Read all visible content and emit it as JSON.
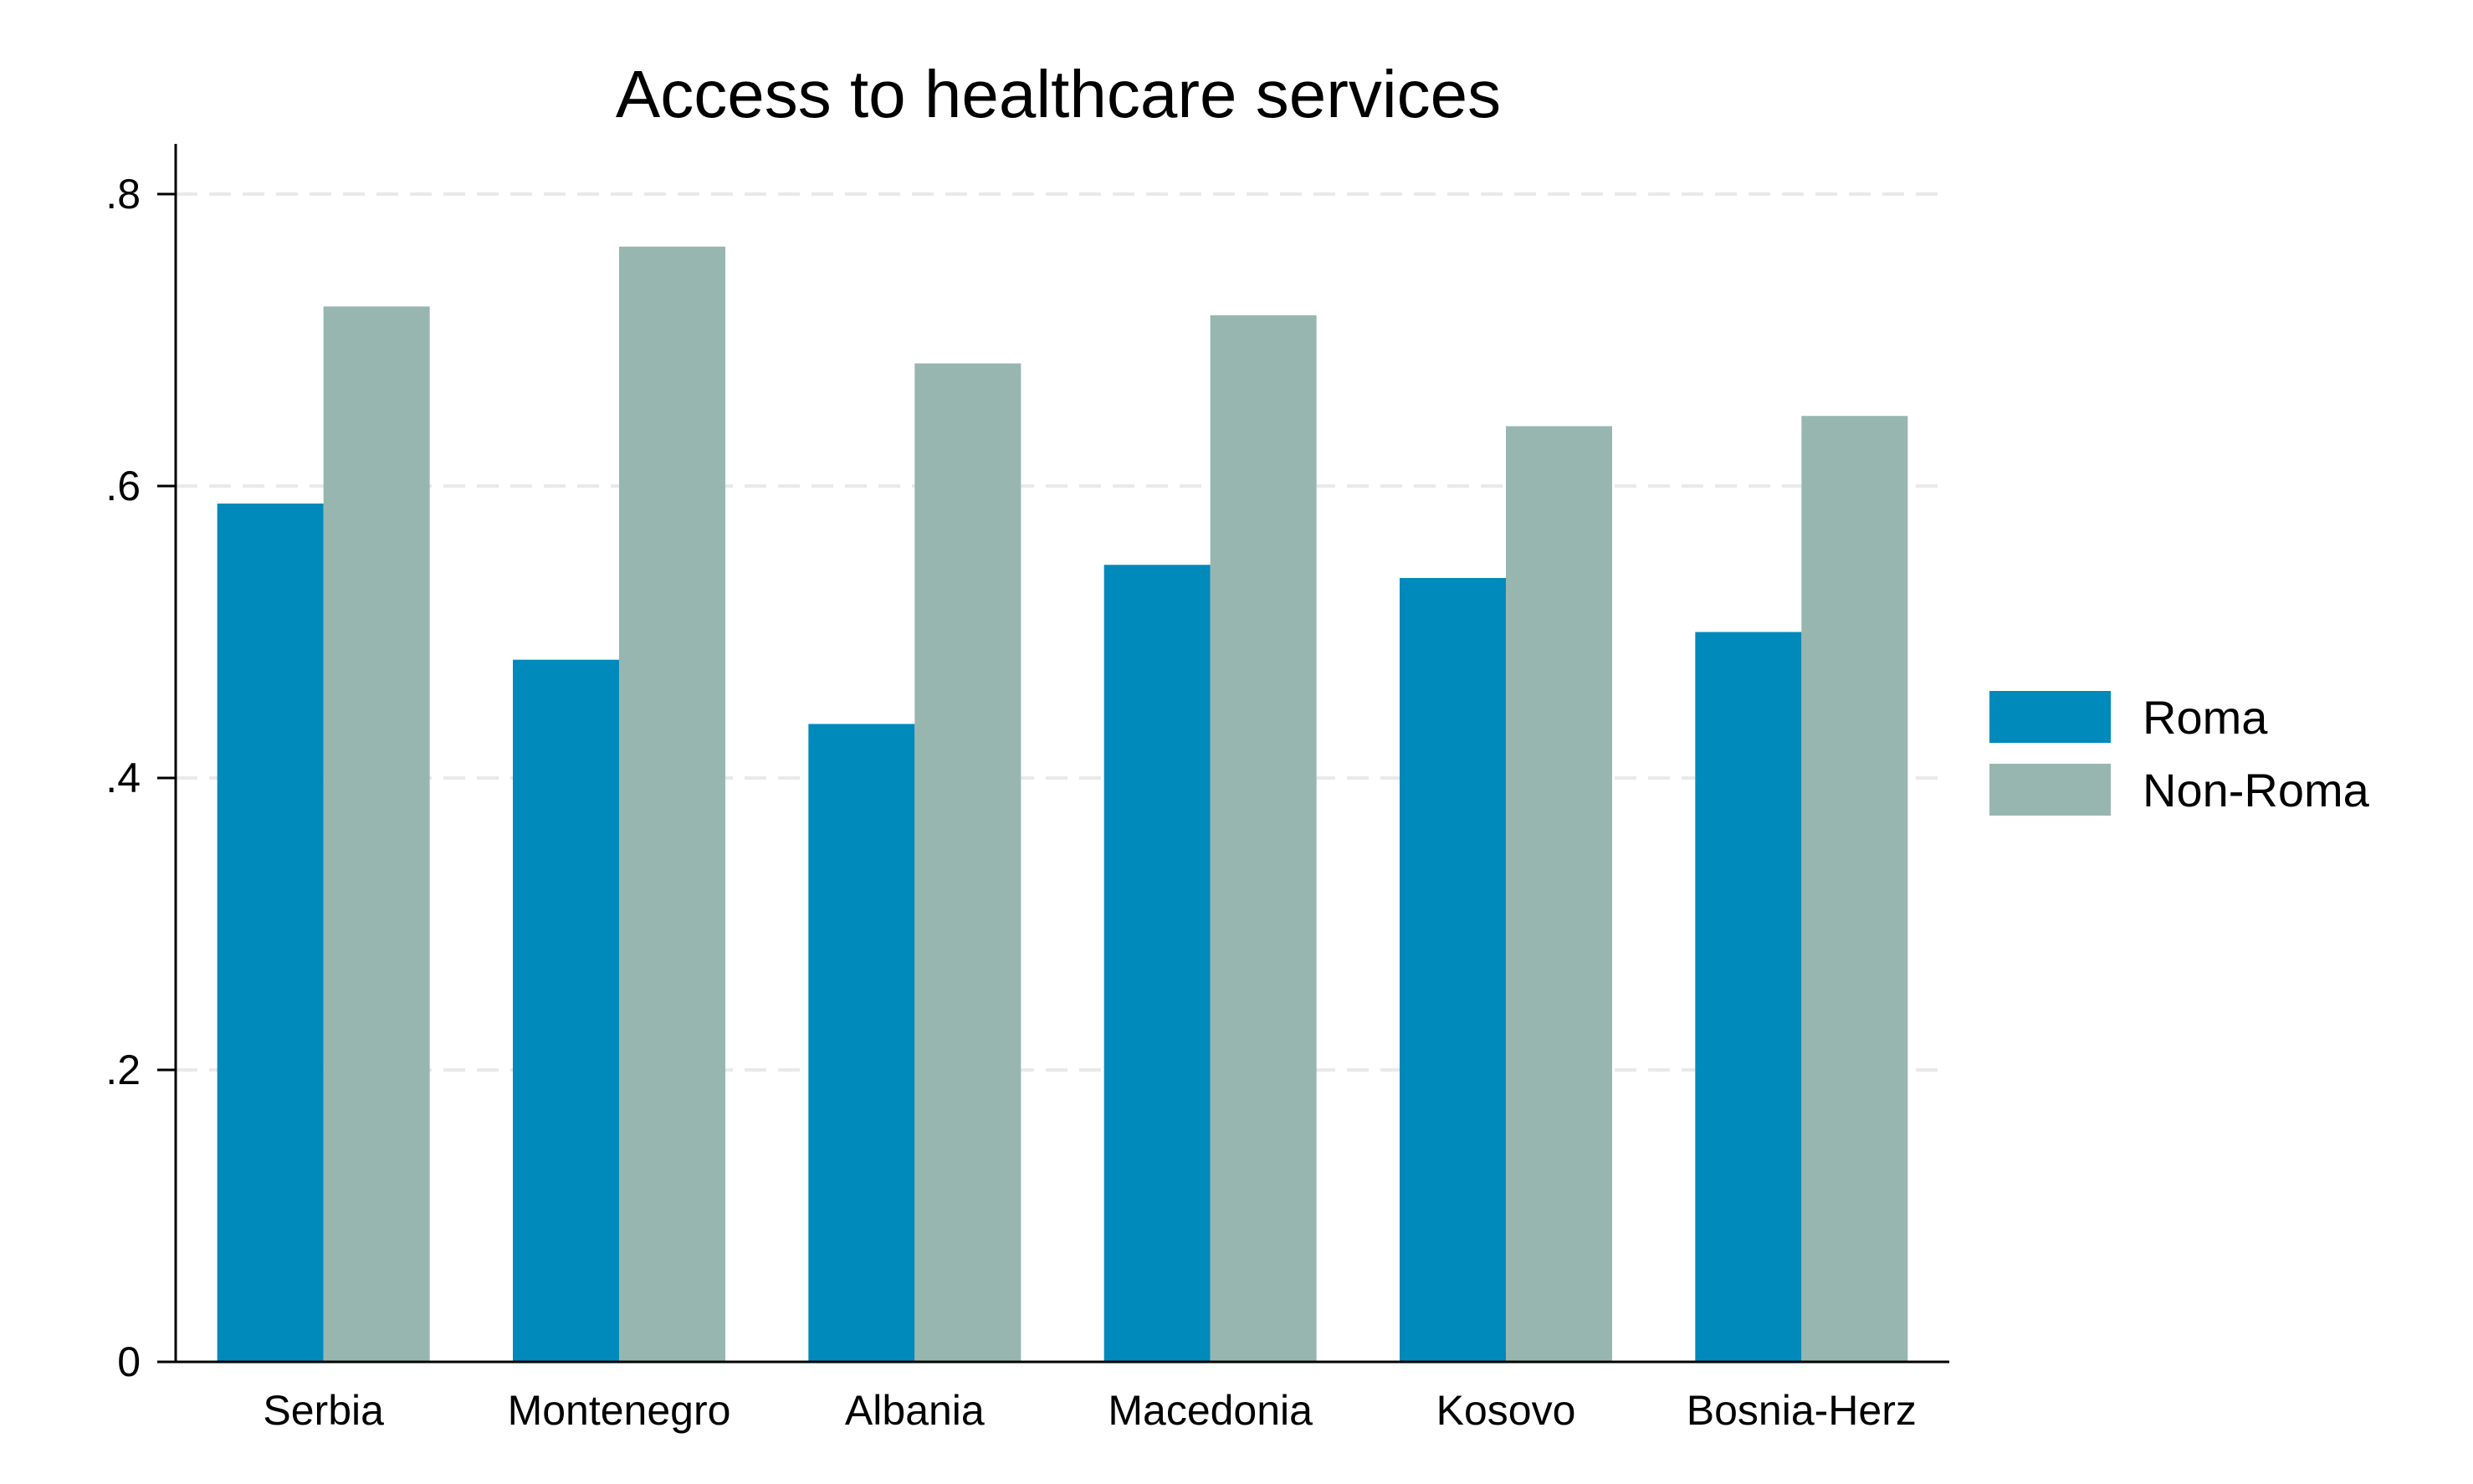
{
  "chart_data": {
    "type": "bar",
    "title": "Access to healthcare services",
    "xlabel": "",
    "ylabel": "",
    "categories": [
      "Serbia",
      "Montenegro",
      "Albania",
      "Macedonia",
      "Kosovo",
      "Bosnia-Herz"
    ],
    "series": [
      {
        "name": "Roma",
        "color": "#0089bb",
        "values": [
          0.588,
          0.481,
          0.437,
          0.546,
          0.537,
          0.5
        ]
      },
      {
        "name": "Non-Roma",
        "color": "#98b6b0",
        "values": [
          0.723,
          0.764,
          0.684,
          0.717,
          0.641,
          0.648
        ]
      }
    ],
    "ylim": [
      0,
      0.8
    ],
    "yticks": [
      0,
      0.2,
      0.4,
      0.6,
      0.8
    ],
    "ytick_labels": [
      "0",
      ".2",
      ".4",
      ".6",
      ".8"
    ],
    "grid": true,
    "legend_position": "right"
  }
}
